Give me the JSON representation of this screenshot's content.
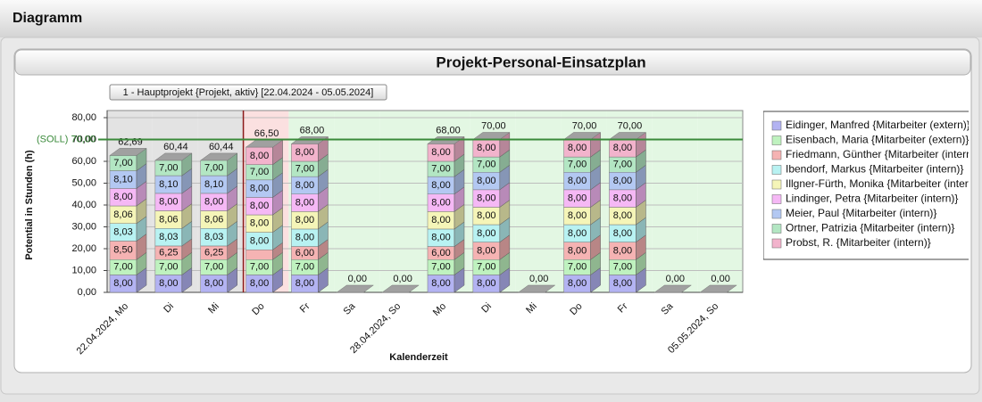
{
  "window_title": "Diagramm",
  "panel_title": "Projekt-Personal-Einsatzplan",
  "project_button": "1 - Hauptprojekt {Projekt, aktiv}  [22.04.2024 - 05.05.2024]",
  "chart_data": {
    "type": "stacked_bar_3d",
    "ylabel": "Potential in Stunden (h)",
    "xlabel": "Kalenderzeit",
    "categories": [
      "22.04.2024, Mo",
      "Di",
      "Mi",
      "Do",
      "Fr",
      "Sa",
      "28.04.2024, So",
      "Mo",
      "Di",
      "Mi",
      "Do",
      "Fr",
      "Sa",
      "05.05.2024, So"
    ],
    "background_colors": [
      "#e3e3e3",
      "#e3e3e3",
      "#e3e3e3",
      "#fbe0e0",
      "#e3f7e3",
      "#e3f7e3",
      "#e3f7e3",
      "#e3f7e3",
      "#e3f7e3",
      "#e3f7e3",
      "#e3f7e3",
      "#e3f7e3",
      "#e3f7e3",
      "#e3f7e3"
    ],
    "ylim": [
      0,
      80
    ],
    "yticks": [
      {
        "value": 0,
        "label": "0,00"
      },
      {
        "value": 10,
        "label": "10,00"
      },
      {
        "value": 20,
        "label": "20,00"
      },
      {
        "value": 30,
        "label": "30,00"
      },
      {
        "value": 40,
        "label": "40,00"
      },
      {
        "value": 50,
        "label": "50,00"
      },
      {
        "value": 60,
        "label": "60,00"
      },
      {
        "value": 70,
        "label": "70,00"
      },
      {
        "value": 80,
        "label": "80,00"
      }
    ],
    "grid": true,
    "reference": {
      "value": 70,
      "label": "(SOLL) 70,00",
      "color": "#3a8a3a"
    },
    "totals": [
      62.69,
      60.44,
      60.44,
      66.5,
      68,
      0,
      0,
      68,
      70,
      0,
      70,
      70,
      0,
      0
    ],
    "total_labels": [
      "62,69",
      "60,44",
      "60,44",
      "66,50",
      "68,00",
      "0,00",
      "0,00",
      "68,00",
      "70,00",
      "0,00",
      "70,00",
      "70,00",
      "0,00",
      "0,00"
    ],
    "legend": "right",
    "series": [
      {
        "name": "Eidinger, Manfred {Mitarbeiter (extern)}",
        "color": "#b3b3f2",
        "values": [
          8,
          8,
          8,
          8,
          8,
          0,
          0,
          8,
          8,
          0,
          8,
          8,
          0,
          0
        ],
        "value_labels": [
          "8,00",
          "8,00",
          "8,00",
          "8,00",
          "8,00",
          null,
          null,
          "8,00",
          "8,00",
          null,
          "8,00",
          "8,00",
          null,
          null
        ]
      },
      {
        "name": "Eisenbach, Maria {Mitarbeiter (extern)}",
        "color": "#bff2bf",
        "values": [
          7,
          7,
          7,
          7,
          7,
          0,
          0,
          7,
          7,
          0,
          7,
          7,
          0,
          0
        ],
        "value_labels": [
          "7,00",
          "7,00",
          "7,00",
          "7,00",
          "7,00",
          null,
          null,
          "7,00",
          "7,00",
          null,
          "7,00",
          "7,00",
          null,
          null
        ]
      },
      {
        "name": "Friedmann, Günther {Mitarbeiter (intern)}",
        "color": "#f5b3b3",
        "values": [
          8.5,
          6.25,
          6.25,
          4.5,
          6,
          0,
          0,
          6,
          8,
          0,
          8,
          8,
          0,
          0
        ],
        "value_labels": [
          "8,50",
          "6,25",
          "6,25",
          null,
          "6,00",
          null,
          null,
          "6,00",
          "8,00",
          null,
          "8,00",
          "8,00",
          null,
          null
        ]
      },
      {
        "name": "Ibendorf, Markus {Mitarbeiter (intern)}",
        "color": "#b8f2f2",
        "values": [
          8.03,
          8.03,
          8.03,
          8,
          8,
          0,
          0,
          8,
          8,
          0,
          8,
          8,
          0,
          0
        ],
        "value_labels": [
          "8,03",
          "8,03",
          "8,03",
          "8,00",
          "8,00",
          null,
          null,
          "8,00",
          "8,00",
          null,
          "8,00",
          "8,00",
          null,
          null
        ]
      },
      {
        "name": "Illgner-Fürth, Monika {Mitarbeiter (intern)}",
        "color": "#f5f5b8",
        "values": [
          8.06,
          8.06,
          8.06,
          8,
          8,
          0,
          0,
          8,
          8,
          0,
          8,
          8,
          0,
          0
        ],
        "value_labels": [
          "8,06",
          "8,06",
          "8,06",
          "8,00",
          "8,00",
          null,
          null,
          "8,00",
          "8,00",
          null,
          "8,00",
          "8,00",
          null,
          null
        ]
      },
      {
        "name": "Lindinger, Petra {Mitarbeiter (intern)}",
        "color": "#f5b8f5",
        "values": [
          8,
          8,
          8,
          8,
          8,
          0,
          0,
          8,
          8,
          0,
          8,
          8,
          0,
          0
        ],
        "value_labels": [
          "8,00",
          "8,00",
          "8,00",
          "8,00",
          "8,00",
          null,
          null,
          "8,00",
          "8,00",
          null,
          "8,00",
          "8,00",
          null,
          null
        ]
      },
      {
        "name": "Meier, Paul {Mitarbeiter (intern)}",
        "color": "#b3c8f2",
        "values": [
          8.1,
          8.1,
          8.1,
          8,
          8,
          0,
          0,
          8,
          8,
          0,
          8,
          8,
          0,
          0
        ],
        "value_labels": [
          "8,10",
          "8,10",
          "8,10",
          "8,00",
          "8,00",
          null,
          null,
          "8,00",
          "8,00",
          null,
          "8,00",
          "8,00",
          null,
          null
        ]
      },
      {
        "name": "Ortner, Patrizia {Mitarbeiter (intern)}",
        "color": "#b3e6c3",
        "values": [
          7,
          7,
          7,
          7,
          7,
          0,
          0,
          7,
          7,
          0,
          7,
          7,
          0,
          0
        ],
        "value_labels": [
          "7,00",
          "7,00",
          "7,00",
          "7,00",
          "7,00",
          null,
          null,
          "7,00",
          "7,00",
          null,
          "7,00",
          "7,00",
          null,
          null
        ]
      },
      {
        "name": "Probst, R. {Mitarbeiter (intern)}",
        "color": "#f2b3cc",
        "values": [
          0,
          0,
          0,
          8,
          8,
          0,
          0,
          8,
          8,
          0,
          8,
          8,
          0,
          0
        ],
        "value_labels": [
          null,
          null,
          null,
          "8,00",
          "8,00",
          null,
          null,
          "8,00",
          "8,00",
          null,
          "8,00",
          "8,00",
          null,
          null
        ]
      }
    ]
  }
}
